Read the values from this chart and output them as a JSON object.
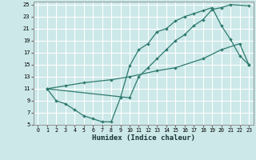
{
  "xlabel": "Humidex (Indice chaleur)",
  "bg_color": "#cce8e8",
  "grid_color": "#ffffff",
  "line_color": "#2d7a6e",
  "xlim": [
    -0.5,
    23.5
  ],
  "ylim": [
    5,
    25.5
  ],
  "xticks": [
    0,
    1,
    2,
    3,
    4,
    5,
    6,
    7,
    8,
    9,
    10,
    11,
    12,
    13,
    14,
    15,
    16,
    17,
    18,
    19,
    20,
    21,
    22,
    23
  ],
  "yticks": [
    5,
    7,
    9,
    11,
    13,
    15,
    17,
    19,
    21,
    23,
    25
  ],
  "line1_x": [
    1,
    2,
    3,
    4,
    5,
    6,
    7,
    8,
    9,
    10,
    11,
    12,
    13,
    14,
    15,
    16,
    17,
    18,
    19,
    20,
    21,
    22,
    23
  ],
  "line1_y": [
    11,
    9,
    8.5,
    7.5,
    6.5,
    6,
    5.5,
    5.5,
    9.5,
    14.8,
    17.5,
    18.5,
    20.5,
    21,
    22.3,
    23,
    23.5,
    24,
    24.5,
    21.5,
    19.2,
    16.5,
    15
  ],
  "line2_x": [
    1,
    10,
    11,
    12,
    13,
    14,
    15,
    16,
    17,
    18,
    19,
    20,
    21,
    23
  ],
  "line2_y": [
    11,
    9.5,
    13,
    14.5,
    16,
    17.5,
    19,
    20,
    21.5,
    22.5,
    24.2,
    24.5,
    25,
    24.8
  ],
  "line3_x": [
    1,
    3,
    5,
    8,
    10,
    13,
    15,
    18,
    20,
    22,
    23
  ],
  "line3_y": [
    11,
    11.5,
    12,
    12.5,
    13,
    14,
    14.5,
    16,
    17.5,
    18.5,
    15
  ]
}
